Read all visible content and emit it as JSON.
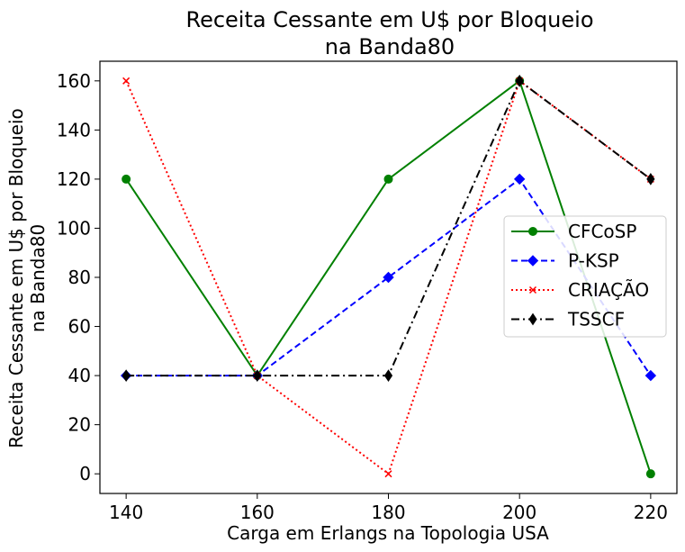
{
  "chart_data": {
    "type": "line",
    "title_line1": "Receita Cessante em U$ por Bloqueio",
    "title_line2": "na Banda80",
    "xlabel": "Carga em Erlangs na Topologia USA",
    "ylabel_line1": "Receita Cessante em U$ por Bloqueio",
    "ylabel_line2": "na Banda80",
    "x": [
      140,
      160,
      180,
      200,
      220
    ],
    "xticks": [
      "140",
      "160",
      "180",
      "200",
      "220"
    ],
    "yticks": [
      "0",
      "20",
      "40",
      "60",
      "80",
      "100",
      "120",
      "140",
      "160"
    ],
    "xlim": [
      136,
      224
    ],
    "ylim": [
      -8,
      168
    ],
    "grid": false,
    "legend_position": "center-right",
    "series": [
      {
        "name": "CFCoSP",
        "values": [
          120,
          40,
          120,
          160,
          0
        ],
        "color": "#008000",
        "dash": "solid",
        "marker": "circle"
      },
      {
        "name": "P-KSP",
        "values": [
          40,
          40,
          80,
          120,
          40
        ],
        "color": "#0000ff",
        "dash": "dashed",
        "marker": "diamond"
      },
      {
        "name": "CRIAÇÃO",
        "values": [
          160,
          40,
          0,
          160,
          120
        ],
        "color": "#ff0000",
        "dash": "dotted",
        "marker": "x"
      },
      {
        "name": "TSSCF",
        "values": [
          40,
          40,
          40,
          160,
          120
        ],
        "color": "#000000",
        "dash": "dashdot",
        "marker": "thin-diamond"
      }
    ]
  }
}
